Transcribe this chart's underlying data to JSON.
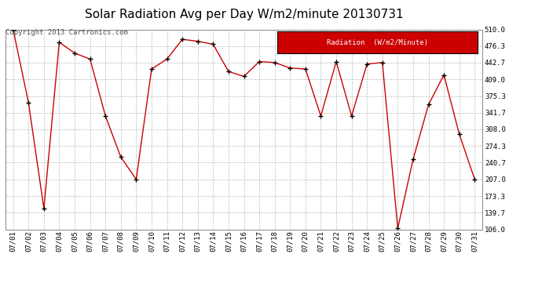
{
  "title": "Solar Radiation Avg per Day W/m2/minute 20130731",
  "copyright_text": "Copyright 2013 Cartronics.com",
  "legend_label": "Radiation  (W/m2/Minute)",
  "dates": [
    "07/01",
    "07/02",
    "07/03",
    "07/04",
    "07/05",
    "07/06",
    "07/07",
    "07/08",
    "07/09",
    "07/10",
    "07/11",
    "07/12",
    "07/13",
    "07/14",
    "07/15",
    "07/16",
    "07/17",
    "07/18",
    "07/19",
    "07/20",
    "07/21",
    "07/22",
    "07/23",
    "07/24",
    "07/25",
    "07/26",
    "07/27",
    "07/28",
    "07/29",
    "07/30",
    "07/31"
  ],
  "values": [
    510,
    362,
    148,
    484,
    462,
    450,
    335,
    252,
    207,
    430,
    450,
    490,
    486,
    480,
    425,
    415,
    445,
    443,
    432,
    430,
    335,
    445,
    335,
    440,
    443,
    108,
    248,
    358,
    418,
    298,
    207
  ],
  "yticks": [
    106.0,
    139.7,
    173.3,
    207.0,
    240.7,
    274.3,
    308.0,
    341.7,
    375.3,
    409.0,
    442.7,
    476.3,
    510.0
  ],
  "ymin": 106.0,
  "ymax": 510.0,
  "line_color": "#cc0000",
  "marker_color": "#000000",
  "bg_color": "#ffffff",
  "grid_color": "#bbbbbb",
  "legend_bg": "#cc0000",
  "legend_text_color": "#ffffff",
  "title_fontsize": 11,
  "tick_fontsize": 6.5,
  "copyright_fontsize": 6.5
}
